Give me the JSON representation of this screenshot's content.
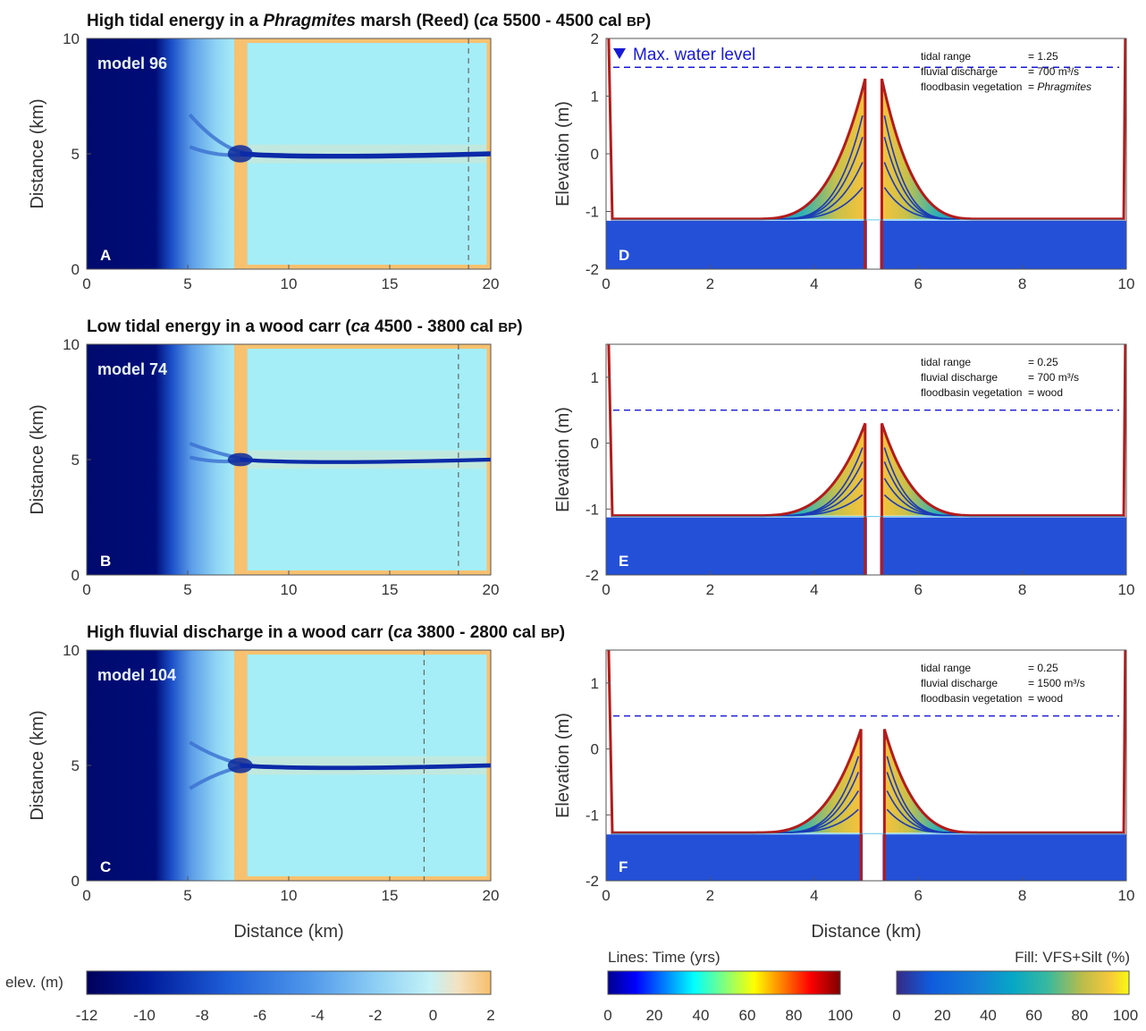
{
  "rows": [
    {
      "title_parts": [
        "High tidal energy in a ",
        "Phragmites",
        " marsh (Reed) (",
        "ca",
        " 5500 - 4500 cal ",
        "BP",
        ")"
      ],
      "model_label": "model 96",
      "map_letter": "A",
      "section_letter": "D",
      "dashed_x_km": 18.9,
      "channel": {
        "outer_fan": 6.7,
        "inner_fan": 5.3,
        "width": 1.2
      },
      "params": [
        {
          "name": "tidal range",
          "value": "= 1.25",
          "italic": false
        },
        {
          "name": "fluvial discharge",
          "value": "= 700 m³/s",
          "italic": false
        },
        {
          "name": "floodbasin vegetation",
          "value": "= ",
          "value_italic": "Phragmites",
          "italic": true
        }
      ],
      "legend_text": "Max. water level",
      "max_water_level_m": 1.5,
      "floodplain_m": -1.13,
      "levee_top_m": 1.3,
      "levee_x": [
        4.98,
        5.3
      ],
      "yrange": [
        -2,
        2
      ],
      "yticks": [
        "-2",
        "-1",
        "0",
        "1",
        "2"
      ]
    },
    {
      "title_parts": [
        "Low tidal energy in a wood carr (",
        "ca",
        " 4500 - 3800 cal ",
        "BP",
        ")"
      ],
      "model_label": "model 74",
      "map_letter": "B",
      "section_letter": "E",
      "dashed_x_km": 18.4,
      "channel": {
        "outer_fan": 5.7,
        "inner_fan": 5.1,
        "width": 0.6
      },
      "params": [
        {
          "name": "tidal range",
          "value": "= 0.25",
          "italic": false
        },
        {
          "name": "fluvial discharge",
          "value": "= 700 m³/s",
          "italic": false
        },
        {
          "name": "floodbasin vegetation",
          "value": "= wood",
          "italic": false
        }
      ],
      "legend_text": "",
      "max_water_level_m": 0.5,
      "floodplain_m": -1.1,
      "levee_top_m": 0.3,
      "levee_x": [
        4.98,
        5.3
      ],
      "yrange": [
        -2,
        1.5
      ],
      "yticks": [
        "-2",
        "-1",
        "0",
        "1"
      ]
    },
    {
      "title_parts": [
        "High fluvial discharge in a wood carr (",
        "ca",
        " 3800 - 2800 cal ",
        "BP",
        ")"
      ],
      "model_label": "model 104",
      "map_letter": "C",
      "section_letter": "F",
      "dashed_x_km": 16.7,
      "channel": {
        "outer_fan": 6.0,
        "inner_fan": 4.0,
        "width": 0.9
      },
      "params": [
        {
          "name": "tidal range",
          "value": "= 0.25",
          "italic": false
        },
        {
          "name": "fluvial discharge",
          "value": "= 1500 m³/s",
          "italic": false
        },
        {
          "name": "floodbasin vegetation",
          "value": "= wood",
          "italic": false
        }
      ],
      "legend_text": "",
      "max_water_level_m": 0.5,
      "floodplain_m": -1.27,
      "levee_top_m": 0.3,
      "levee_x": [
        4.9,
        5.35
      ],
      "yrange": [
        -2,
        1.5
      ],
      "yticks": [
        "-2",
        "-1",
        "0",
        "1"
      ]
    }
  ],
  "map_axes": {
    "xticks": [
      "0",
      "5",
      "10",
      "15",
      "20"
    ],
    "yticks": [
      "0",
      "5",
      "10"
    ],
    "xlabel": "Distance (km)",
    "ylabel": "Distance (km)"
  },
  "section_axes": {
    "xticks": [
      "0",
      "2",
      "4",
      "6",
      "8",
      "10"
    ],
    "xlabel": "Distance (km)",
    "ylabel": "Elevation (m)"
  },
  "colorbars": {
    "elev": {
      "label": "elev. (m)",
      "ticks": [
        "-12",
        "-10",
        "-8",
        "-6",
        "-4",
        "-2",
        "0",
        "2"
      ]
    },
    "lines": {
      "label": "Lines: Time (yrs)",
      "ticks": [
        "0",
        "20",
        "40",
        "60",
        "80",
        "100"
      ]
    },
    "fill": {
      "label": "Fill: VFS+Silt (%)",
      "ticks": [
        "0",
        "20",
        "40",
        "60",
        "80",
        "100"
      ]
    }
  },
  "colors": {
    "deep": "#000a6e",
    "shallow": "#8fe6f5",
    "basin": "#a5eef7",
    "bank": "#f7c170",
    "channel": "#0b2aa8",
    "crust": "#b31b1b",
    "water_level": "#1818d8",
    "substrate": "#2450d8"
  },
  "chart_data": [
    {
      "type": "heatmap",
      "title": "High tidal energy in a Phragmites marsh (Reed) (ca 5500 - 4500 cal BP)",
      "xlabel": "Distance (km)",
      "ylabel": "Distance (km)",
      "xlim": [
        0,
        20
      ],
      "ylim": [
        0,
        10
      ],
      "colorbar": {
        "label": "elev. (m)",
        "range": [
          -12,
          2
        ]
      },
      "annotations": [
        "model 96",
        "A"
      ]
    },
    {
      "type": "line",
      "xlabel": "Distance (km)",
      "ylabel": "Elevation (m)",
      "xlim": [
        0,
        10
      ],
      "ylim": [
        -2,
        2
      ],
      "annotations": [
        "Max. water level",
        "D"
      ],
      "max_water_level": 1.5,
      "floodplain_elevation": -1.13,
      "levee_crest": 1.3
    },
    {
      "type": "heatmap",
      "title": "Low tidal energy in a wood carr (ca 4500 - 3800 cal BP)",
      "xlabel": "Distance (km)",
      "ylabel": "Distance (km)",
      "xlim": [
        0,
        20
      ],
      "ylim": [
        0,
        10
      ],
      "colorbar": {
        "label": "elev. (m)",
        "range": [
          -12,
          2
        ]
      },
      "annotations": [
        "model 74",
        "B"
      ]
    },
    {
      "type": "line",
      "xlabel": "Distance (km)",
      "ylabel": "Elevation (m)",
      "xlim": [
        0,
        10
      ],
      "ylim": [
        -2,
        1.5
      ],
      "annotations": [
        "E"
      ],
      "max_water_level": 0.5,
      "floodplain_elevation": -1.1,
      "levee_crest": 0.3
    },
    {
      "type": "heatmap",
      "title": "High fluvial discharge in a wood carr (ca 3800 - 2800 cal BP)",
      "xlabel": "Distance (km)",
      "ylabel": "Distance (km)",
      "xlim": [
        0,
        20
      ],
      "ylim": [
        0,
        10
      ],
      "colorbar": {
        "label": "elev. (m)",
        "range": [
          -12,
          2
        ]
      },
      "annotations": [
        "model 104",
        "C"
      ]
    },
    {
      "type": "line",
      "xlabel": "Distance (km)",
      "ylabel": "Elevation (m)",
      "xlim": [
        0,
        10
      ],
      "ylim": [
        -2,
        1.5
      ],
      "annotations": [
        "F"
      ],
      "max_water_level": 0.5,
      "floodplain_elevation": -1.27,
      "levee_crest": 0.3
    }
  ]
}
